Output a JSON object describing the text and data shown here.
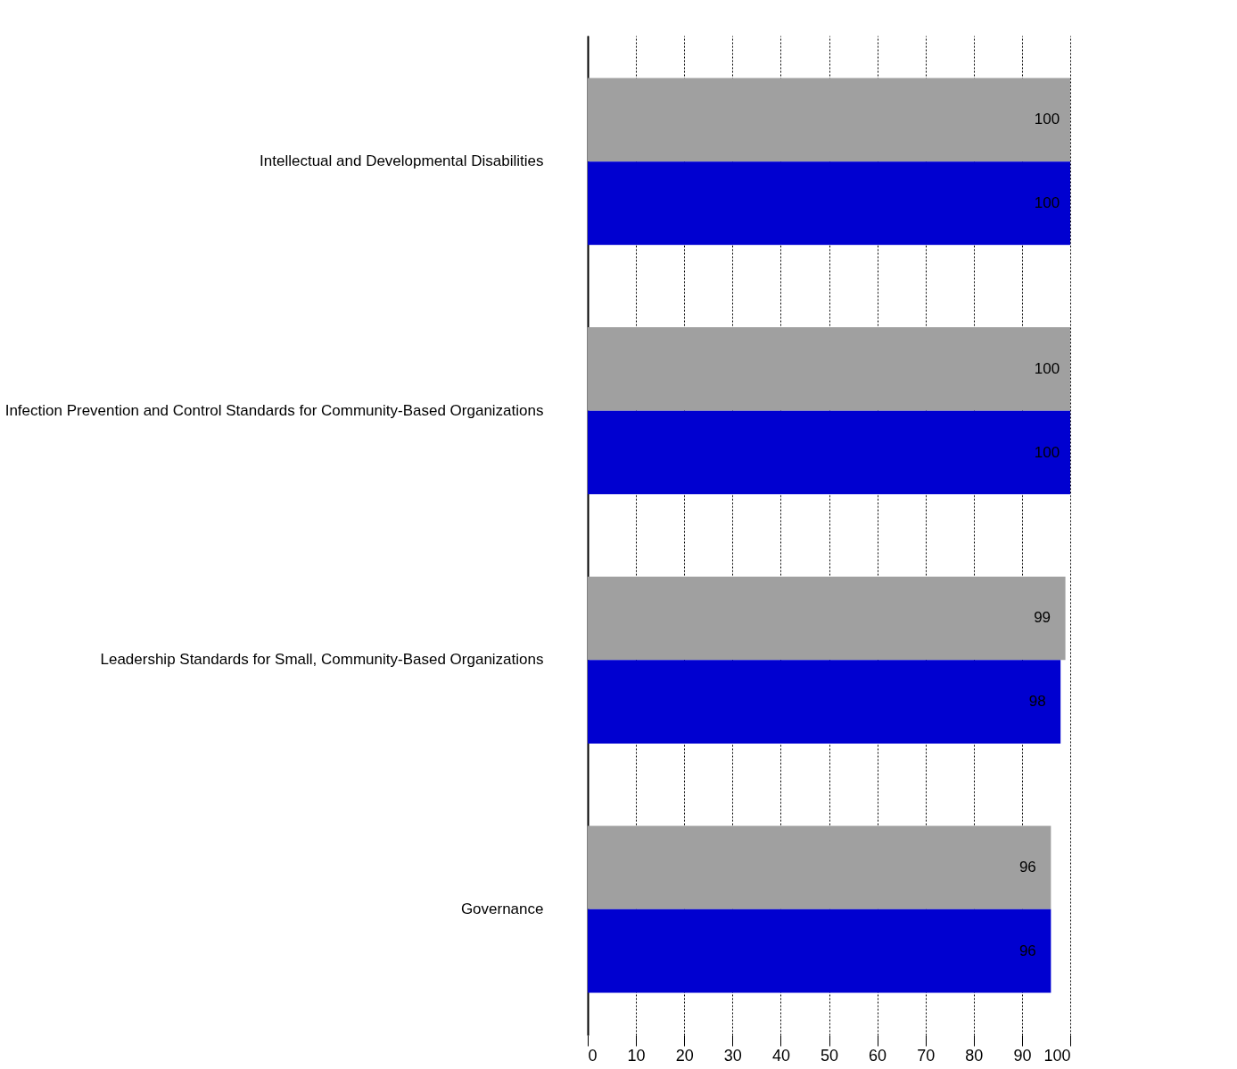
{
  "chart_data": {
    "type": "bar",
    "orientation": "horizontal",
    "categories": [
      "Intellectual and Developmental Disabilities",
      "Infection Prevention and Control Standards for Community-Based Organizations",
      "Leadership Standards for Small, Community-Based Organizations",
      "Governance"
    ],
    "series": [
      {
        "color": "#a0a0a0",
        "values": [
          100,
          100,
          99,
          96
        ]
      },
      {
        "color": "#0000d0",
        "values": [
          100,
          100,
          98,
          96
        ]
      }
    ],
    "xlim": [
      0,
      100
    ],
    "xticks": [
      0,
      10,
      20,
      30,
      40,
      50,
      60,
      70,
      80,
      90,
      100
    ],
    "grid": "x",
    "legend": false,
    "data_labels": true
  }
}
